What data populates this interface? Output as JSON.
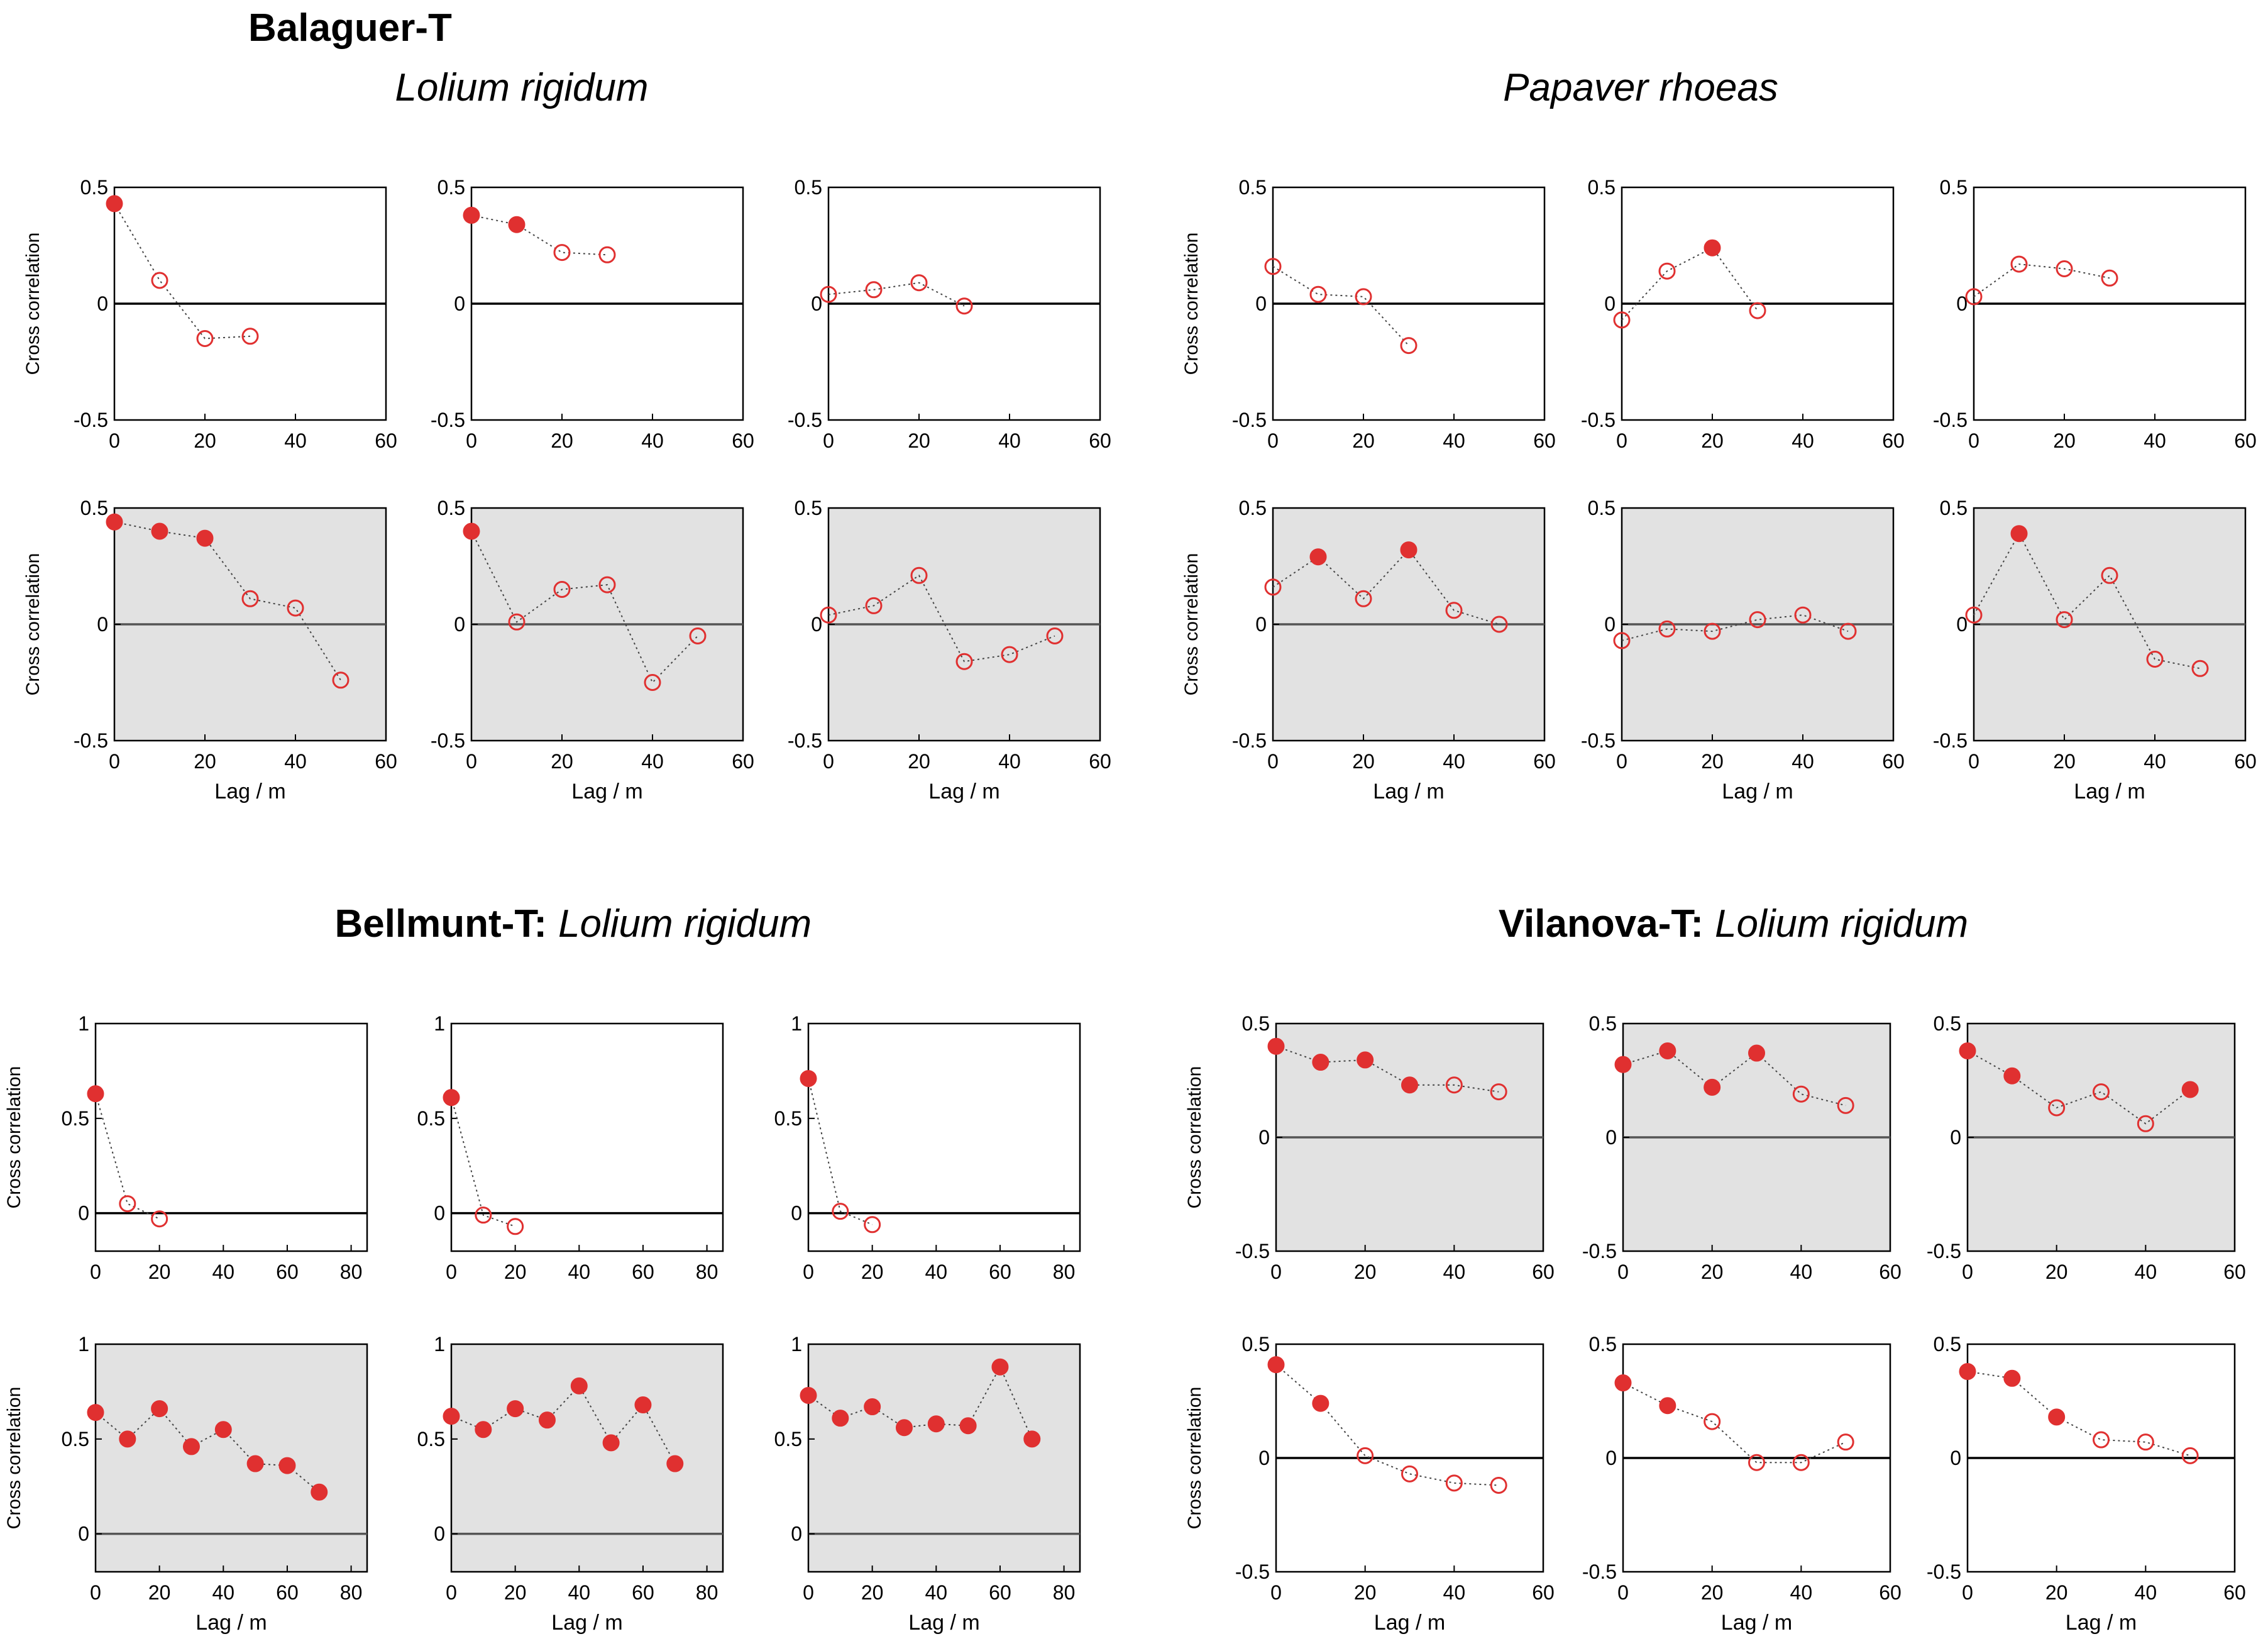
{
  "section_titles": {
    "balaguer": {
      "site": "Balaguer-T",
      "species_left": "Lolium rigidum",
      "species_right": "Papaver rhoeas"
    },
    "bellmunt": {
      "site": "Bellmunt-T:",
      "species": "Lolium rigidum"
    },
    "vilanova": {
      "site": "Vilanova-T:",
      "species": "Lolium rigidum"
    }
  },
  "colors": {
    "marker": "#e03030",
    "marker_light": "#e06060",
    "shade": "#e2e2e2",
    "axis": "#000000",
    "dotted": "#444444"
  },
  "chart_data": [
    {
      "id": "bal-lol-1",
      "type": "scatter",
      "shaded": false,
      "ylabel": "Cross correlation",
      "xlabel": "",
      "xlim": [
        0,
        60
      ],
      "ylim": [
        -0.5,
        0.5
      ],
      "xticks": [
        0,
        20,
        40,
        60
      ],
      "yticks": [
        "0.5",
        "0",
        "-0.5"
      ],
      "x": [
        0,
        10,
        20,
        30
      ],
      "y": [
        0.43,
        0.1,
        -0.15,
        -0.14
      ],
      "filled": [
        true,
        false,
        false,
        false
      ]
    },
    {
      "id": "bal-lol-2",
      "type": "scatter",
      "shaded": false,
      "ylabel": "",
      "xlabel": "",
      "xlim": [
        0,
        60
      ],
      "ylim": [
        -0.5,
        0.5
      ],
      "xticks": [
        0,
        20,
        40,
        60
      ],
      "yticks": [
        "0.5",
        "0",
        "-0.5"
      ],
      "x": [
        0,
        10,
        20,
        30
      ],
      "y": [
        0.38,
        0.34,
        0.22,
        0.21
      ],
      "filled": [
        true,
        true,
        false,
        false
      ]
    },
    {
      "id": "bal-lol-3",
      "type": "scatter",
      "shaded": false,
      "ylabel": "",
      "xlabel": "",
      "xlim": [
        0,
        60
      ],
      "ylim": [
        -0.5,
        0.5
      ],
      "xticks": [
        0,
        20,
        40,
        60
      ],
      "yticks": [
        "0.5",
        "0",
        "-0.5"
      ],
      "x": [
        0,
        10,
        20,
        30
      ],
      "y": [
        0.04,
        0.06,
        0.09,
        -0.01
      ],
      "filled": [
        false,
        false,
        false,
        false
      ]
    },
    {
      "id": "bal-pap-1",
      "type": "scatter",
      "shaded": false,
      "ylabel": "Cross correlation",
      "xlabel": "",
      "xlim": [
        0,
        60
      ],
      "ylim": [
        -0.5,
        0.5
      ],
      "xticks": [
        0,
        20,
        40,
        60
      ],
      "yticks": [
        "0.5",
        "0",
        "-0.5"
      ],
      "x": [
        0,
        10,
        20,
        30
      ],
      "y": [
        0.16,
        0.04,
        0.03,
        -0.18
      ],
      "filled": [
        false,
        false,
        false,
        false
      ]
    },
    {
      "id": "bal-pap-2",
      "type": "scatter",
      "shaded": false,
      "ylabel": "",
      "xlabel": "",
      "xlim": [
        0,
        60
      ],
      "ylim": [
        -0.5,
        0.5
      ],
      "xticks": [
        0,
        20,
        40,
        60
      ],
      "yticks": [
        "0.5",
        "0",
        "-0.5"
      ],
      "x": [
        0,
        10,
        20,
        30
      ],
      "y": [
        -0.07,
        0.14,
        0.24,
        -0.03
      ],
      "filled": [
        false,
        false,
        true,
        false
      ]
    },
    {
      "id": "bal-pap-3",
      "type": "scatter",
      "shaded": false,
      "ylabel": "",
      "xlabel": "",
      "xlim": [
        0,
        60
      ],
      "ylim": [
        -0.5,
        0.5
      ],
      "xticks": [
        0,
        20,
        40,
        60
      ],
      "yticks": [
        "0.5",
        "0",
        "-0.5"
      ],
      "x": [
        0,
        10,
        20,
        30
      ],
      "y": [
        0.03,
        0.17,
        0.15,
        0.11
      ],
      "filled": [
        false,
        false,
        false,
        false
      ]
    },
    {
      "id": "bal-lol-4",
      "type": "scatter",
      "shaded": true,
      "ylabel": "Cross correlation",
      "xlabel": "Lag / m",
      "xlim": [
        0,
        60
      ],
      "ylim": [
        -0.5,
        0.5
      ],
      "xticks": [
        0,
        20,
        40,
        60
      ],
      "yticks": [
        "0.5",
        "0",
        "-0.5"
      ],
      "x": [
        0,
        10,
        20,
        30,
        40,
        50
      ],
      "y": [
        0.44,
        0.4,
        0.37,
        0.11,
        0.07,
        -0.24
      ],
      "filled": [
        true,
        true,
        true,
        false,
        false,
        false
      ]
    },
    {
      "id": "bal-lol-5",
      "type": "scatter",
      "shaded": true,
      "ylabel": "",
      "xlabel": "Lag / m",
      "xlim": [
        0,
        60
      ],
      "ylim": [
        -0.5,
        0.5
      ],
      "xticks": [
        0,
        20,
        40,
        60
      ],
      "yticks": [
        "0.5",
        "0",
        "-0.5"
      ],
      "x": [
        0,
        10,
        20,
        30,
        40,
        50
      ],
      "y": [
        0.4,
        0.01,
        0.15,
        0.17,
        -0.25,
        -0.05
      ],
      "filled": [
        true,
        false,
        false,
        false,
        false,
        false
      ]
    },
    {
      "id": "bal-lol-6",
      "type": "scatter",
      "shaded": true,
      "ylabel": "",
      "xlabel": "Lag / m",
      "xlim": [
        0,
        60
      ],
      "ylim": [
        -0.5,
        0.5
      ],
      "xticks": [
        0,
        20,
        40,
        60
      ],
      "yticks": [
        "0.5",
        "0",
        "-0.5"
      ],
      "x": [
        0,
        10,
        20,
        30,
        40,
        50
      ],
      "y": [
        0.04,
        0.08,
        0.21,
        -0.16,
        -0.13,
        -0.05
      ],
      "filled": [
        false,
        false,
        false,
        false,
        false,
        false
      ]
    },
    {
      "id": "bal-pap-4",
      "type": "scatter",
      "shaded": true,
      "ylabel": "Cross correlation",
      "xlabel": "Lag / m",
      "xlim": [
        0,
        60
      ],
      "ylim": [
        -0.5,
        0.5
      ],
      "xticks": [
        0,
        20,
        40,
        60
      ],
      "yticks": [
        "0.5",
        "0",
        "-0.5"
      ],
      "x": [
        0,
        10,
        20,
        30,
        40,
        50
      ],
      "y": [
        0.16,
        0.29,
        0.11,
        0.32,
        0.06,
        0.0
      ],
      "filled": [
        false,
        true,
        false,
        true,
        false,
        false
      ]
    },
    {
      "id": "bal-pap-5",
      "type": "scatter",
      "shaded": true,
      "ylabel": "",
      "xlabel": "Lag / m",
      "xlim": [
        0,
        60
      ],
      "ylim": [
        -0.5,
        0.5
      ],
      "xticks": [
        0,
        20,
        40,
        60
      ],
      "yticks": [
        "0.5",
        "0",
        "-0.5"
      ],
      "x": [
        0,
        10,
        20,
        30,
        40,
        50
      ],
      "y": [
        -0.07,
        -0.02,
        -0.03,
        0.02,
        0.04,
        -0.03
      ],
      "filled": [
        false,
        false,
        false,
        false,
        false,
        false
      ]
    },
    {
      "id": "bal-pap-6",
      "type": "scatter",
      "shaded": true,
      "ylabel": "",
      "xlabel": "Lag / m",
      "xlim": [
        0,
        60
      ],
      "ylim": [
        -0.5,
        0.5
      ],
      "xticks": [
        0,
        20,
        40,
        60
      ],
      "yticks": [
        "0.5",
        "0",
        "-0.5"
      ],
      "x": [
        0,
        10,
        20,
        30,
        40,
        50
      ],
      "y": [
        0.04,
        0.39,
        0.02,
        0.21,
        -0.15,
        -0.19
      ],
      "filled": [
        false,
        true,
        false,
        false,
        false,
        false
      ]
    },
    {
      "id": "bel-1",
      "type": "scatter",
      "shaded": false,
      "ylabel": "Cross correlation",
      "xlabel": "",
      "xlim": [
        0,
        85
      ],
      "ylim": [
        -0.2,
        1
      ],
      "xticks": [
        0,
        20,
        40,
        60,
        80
      ],
      "yticks": [
        "1",
        "0.5",
        "0"
      ],
      "x": [
        0,
        10,
        20
      ],
      "y": [
        0.63,
        0.05,
        -0.03
      ],
      "filled": [
        true,
        false,
        false
      ]
    },
    {
      "id": "bel-2",
      "type": "scatter",
      "shaded": false,
      "ylabel": "",
      "xlabel": "",
      "xlim": [
        0,
        85
      ],
      "ylim": [
        -0.2,
        1
      ],
      "xticks": [
        0,
        20,
        40,
        60,
        80
      ],
      "yticks": [
        "1",
        "0.5",
        "0"
      ],
      "x": [
        0,
        10,
        20
      ],
      "y": [
        0.61,
        -0.01,
        -0.07
      ],
      "filled": [
        true,
        false,
        false
      ]
    },
    {
      "id": "bel-3",
      "type": "scatter",
      "shaded": false,
      "ylabel": "",
      "xlabel": "",
      "xlim": [
        0,
        85
      ],
      "ylim": [
        -0.2,
        1
      ],
      "xticks": [
        0,
        20,
        40,
        60,
        80
      ],
      "yticks": [
        "1",
        "0.5",
        "0"
      ],
      "x": [
        0,
        10,
        20
      ],
      "y": [
        0.71,
        0.01,
        -0.06
      ],
      "filled": [
        true,
        false,
        false
      ]
    },
    {
      "id": "vil-1",
      "type": "scatter",
      "shaded": true,
      "ylabel": "Cross correlation",
      "xlabel": "",
      "xlim": [
        0,
        60
      ],
      "ylim": [
        -0.5,
        0.5
      ],
      "xticks": [
        0,
        20,
        40,
        60
      ],
      "yticks": [
        "0.5",
        "0",
        "-0.5"
      ],
      "x": [
        0,
        10,
        20,
        30,
        40,
        50
      ],
      "y": [
        0.4,
        0.33,
        0.34,
        0.23,
        0.23,
        0.2
      ],
      "filled": [
        true,
        true,
        true,
        true,
        false,
        false
      ]
    },
    {
      "id": "vil-2",
      "type": "scatter",
      "shaded": true,
      "ylabel": "",
      "xlabel": "",
      "xlim": [
        0,
        60
      ],
      "ylim": [
        -0.5,
        0.5
      ],
      "xticks": [
        0,
        20,
        40,
        60
      ],
      "yticks": [
        "0.5",
        "0",
        "-0.5"
      ],
      "x": [
        0,
        10,
        20,
        30,
        40,
        50
      ],
      "y": [
        0.32,
        0.38,
        0.22,
        0.37,
        0.19,
        0.14
      ],
      "filled": [
        true,
        true,
        true,
        true,
        false,
        false
      ]
    },
    {
      "id": "vil-3",
      "type": "scatter",
      "shaded": true,
      "ylabel": "",
      "xlabel": "",
      "xlim": [
        0,
        60
      ],
      "ylim": [
        -0.5,
        0.5
      ],
      "xticks": [
        0,
        20,
        40,
        60
      ],
      "yticks": [
        "0.5",
        "0",
        "-0.5"
      ],
      "x": [
        0,
        10,
        20,
        30,
        40,
        50
      ],
      "y": [
        0.38,
        0.27,
        0.13,
        0.2,
        0.06,
        0.21
      ],
      "filled": [
        true,
        true,
        false,
        false,
        false,
        true
      ]
    },
    {
      "id": "bel-4",
      "type": "scatter",
      "shaded": true,
      "ylabel": "Cross correlation",
      "xlabel": "Lag / m",
      "xlim": [
        0,
        85
      ],
      "ylim": [
        -0.2,
        1
      ],
      "xticks": [
        0,
        20,
        40,
        60,
        80
      ],
      "yticks": [
        "1",
        "0.5",
        "0"
      ],
      "x": [
        0,
        10,
        20,
        30,
        40,
        50,
        60,
        70
      ],
      "y": [
        0.64,
        0.5,
        0.66,
        0.46,
        0.55,
        0.37,
        0.36,
        0.22
      ],
      "filled": [
        true,
        true,
        true,
        true,
        true,
        true,
        true,
        true
      ]
    },
    {
      "id": "bel-5",
      "type": "scatter",
      "shaded": true,
      "ylabel": "",
      "xlabel": "Lag / m",
      "xlim": [
        0,
        85
      ],
      "ylim": [
        -0.2,
        1
      ],
      "xticks": [
        0,
        20,
        40,
        60,
        80
      ],
      "yticks": [
        "1",
        "0.5",
        "0"
      ],
      "x": [
        0,
        10,
        20,
        30,
        40,
        50,
        60,
        70
      ],
      "y": [
        0.62,
        0.55,
        0.66,
        0.6,
        0.78,
        0.48,
        0.68,
        0.37
      ],
      "filled": [
        true,
        true,
        true,
        true,
        true,
        true,
        true,
        true
      ]
    },
    {
      "id": "bel-6",
      "type": "scatter",
      "shaded": true,
      "ylabel": "",
      "xlabel": "Lag / m",
      "xlim": [
        0,
        85
      ],
      "ylim": [
        -0.2,
        1
      ],
      "xticks": [
        0,
        20,
        40,
        60,
        80
      ],
      "yticks": [
        "1",
        "0.5",
        "0"
      ],
      "x": [
        0,
        10,
        20,
        30,
        40,
        50,
        60,
        70
      ],
      "y": [
        0.73,
        0.61,
        0.67,
        0.56,
        0.58,
        0.57,
        0.88,
        0.5
      ],
      "filled": [
        true,
        true,
        true,
        true,
        true,
        true,
        true,
        true
      ]
    },
    {
      "id": "vil-4",
      "type": "scatter",
      "shaded": false,
      "ylabel": "Cross correlation",
      "xlabel": "Lag / m",
      "xlim": [
        0,
        60
      ],
      "ylim": [
        -0.5,
        0.5
      ],
      "xticks": [
        0,
        20,
        40,
        60
      ],
      "yticks": [
        "0.5",
        "0",
        "-0.5"
      ],
      "x": [
        0,
        10,
        20,
        30,
        40,
        50
      ],
      "y": [
        0.41,
        0.24,
        0.01,
        -0.07,
        -0.11,
        -0.12
      ],
      "filled": [
        true,
        true,
        false,
        false,
        false,
        false
      ]
    },
    {
      "id": "vil-5",
      "type": "scatter",
      "shaded": false,
      "ylabel": "",
      "xlabel": "Lag / m",
      "xlim": [
        0,
        60
      ],
      "ylim": [
        -0.5,
        0.5
      ],
      "xticks": [
        0,
        20,
        40,
        60
      ],
      "yticks": [
        "0.5",
        "0",
        "-0.5"
      ],
      "x": [
        0,
        10,
        20,
        30,
        40,
        50
      ],
      "y": [
        0.33,
        0.23,
        0.16,
        -0.02,
        -0.02,
        0.07
      ],
      "filled": [
        true,
        true,
        false,
        false,
        false,
        false
      ]
    },
    {
      "id": "vil-6",
      "type": "scatter",
      "shaded": false,
      "ylabel": "",
      "xlabel": "Lag / m",
      "xlim": [
        0,
        60
      ],
      "ylim": [
        -0.5,
        0.5
      ],
      "xticks": [
        0,
        20,
        40,
        60
      ],
      "yticks": [
        "0.5",
        "0",
        "-0.5"
      ],
      "x": [
        0,
        10,
        20,
        30,
        40,
        50
      ],
      "y": [
        0.38,
        0.35,
        0.18,
        0.08,
        0.07,
        0.01
      ],
      "filled": [
        true,
        true,
        true,
        false,
        false,
        false
      ]
    }
  ]
}
